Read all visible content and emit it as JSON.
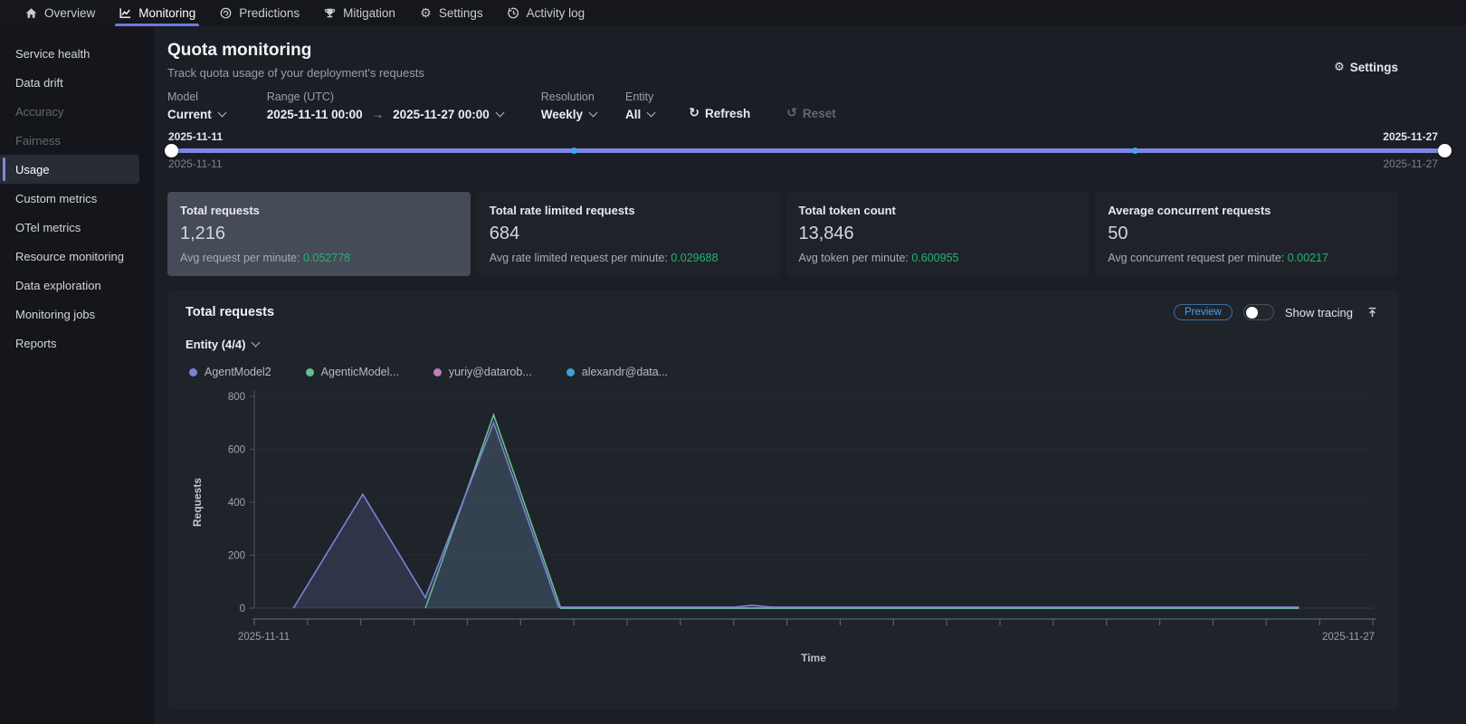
{
  "nav": {
    "items": [
      {
        "label": "Overview",
        "icon": "home-icon"
      },
      {
        "label": "Monitoring",
        "icon": "chart-icon",
        "active": true
      },
      {
        "label": "Predictions",
        "icon": "predictions-icon"
      },
      {
        "label": "Mitigation",
        "icon": "trophy-icon"
      },
      {
        "label": "Settings",
        "icon": "gear-icon"
      },
      {
        "label": "Activity log",
        "icon": "history-icon"
      }
    ]
  },
  "sidebar": {
    "items": [
      {
        "label": "Service health"
      },
      {
        "label": "Data drift"
      },
      {
        "label": "Accuracy",
        "disabled": true
      },
      {
        "label": "Fairness",
        "disabled": true
      },
      {
        "label": "Usage",
        "active": true
      },
      {
        "label": "Custom metrics"
      },
      {
        "label": "OTel metrics"
      },
      {
        "label": "Resource monitoring"
      },
      {
        "label": "Data exploration"
      },
      {
        "label": "Monitoring jobs"
      },
      {
        "label": "Reports"
      }
    ]
  },
  "header": {
    "title": "Quota monitoring",
    "subtitle": "Track quota usage of your deployment's requests",
    "settings_label": "Settings"
  },
  "filters": {
    "model_label": "Model",
    "model_value": "Current",
    "range_label": "Range (UTC)",
    "range_start": "2025-11-11  00:00",
    "range_arrow": "→",
    "range_end": "2025-11-27  00:00",
    "resolution_label": "Resolution",
    "resolution_value": "Weekly",
    "entity_label": "Entity",
    "entity_value": "All",
    "refresh_label": "Refresh",
    "reset_label": "Reset"
  },
  "slider": {
    "start_top": "2025-11-11",
    "start_bottom": "2025-11-11",
    "end_top": "2025-11-27",
    "end_bottom": "2025-11-27",
    "dot_positions_pct": [
      31.5,
      75.3
    ]
  },
  "stats": [
    {
      "title": "Total requests",
      "value": "1,216",
      "sub_label": "Avg request per minute: ",
      "sub_value": "0.052778"
    },
    {
      "title": "Total rate limited requests",
      "value": "684",
      "sub_label": "Avg rate limited request per minute: ",
      "sub_value": "0.029688"
    },
    {
      "title": "Total token count",
      "value": "13,846",
      "sub_label": "Avg token per minute: ",
      "sub_value": "0.600955"
    },
    {
      "title": "Average concurrent requests",
      "value": "50",
      "sub_label": "Avg concurrent request per minute: ",
      "sub_value": "0.00217"
    }
  ],
  "chart_panel": {
    "title": "Total requests",
    "preview_badge": "Preview",
    "show_tracing_label": "Show tracing",
    "entity_selector": "Entity (4/4)"
  },
  "chart_data": {
    "type": "area",
    "title": "Total requests",
    "xlabel": "Time",
    "ylabel": "Requests",
    "ylim": [
      0,
      800
    ],
    "yticks": [
      0,
      200,
      400,
      600,
      800
    ],
    "x_start_label": "2025-11-11",
    "x_end_label": "2025-11-27",
    "grid": true,
    "legend_position": "top",
    "series": [
      {
        "name": "AgentModel2",
        "color": "#7c82d4",
        "fill": "rgba(116,124,196,0.20)",
        "points": [
          [
            0.035,
            0
          ],
          [
            0.097,
            430
          ],
          [
            0.153,
            40
          ],
          [
            0.214,
            700
          ],
          [
            0.272,
            4
          ],
          [
            0.43,
            4
          ],
          [
            0.445,
            11
          ],
          [
            0.462,
            4
          ],
          [
            0.934,
            4
          ]
        ]
      },
      {
        "name": "AgenticModel...",
        "color": "#66bd92",
        "fill": "rgba(102,189,146,0.10)",
        "points": [
          [
            0.153,
            0
          ],
          [
            0.214,
            730
          ],
          [
            0.274,
            0
          ],
          [
            0.934,
            0
          ]
        ]
      },
      {
        "name": "yuriy@datarob...",
        "color": "#bd7cba",
        "fill": "none",
        "points": [
          [
            0.274,
            0
          ],
          [
            0.934,
            0
          ]
        ]
      },
      {
        "name": "alexandr@data...",
        "color": "#3f9fd6",
        "fill": "none",
        "points": [
          [
            0.274,
            0
          ],
          [
            0.934,
            0
          ]
        ]
      }
    ]
  }
}
